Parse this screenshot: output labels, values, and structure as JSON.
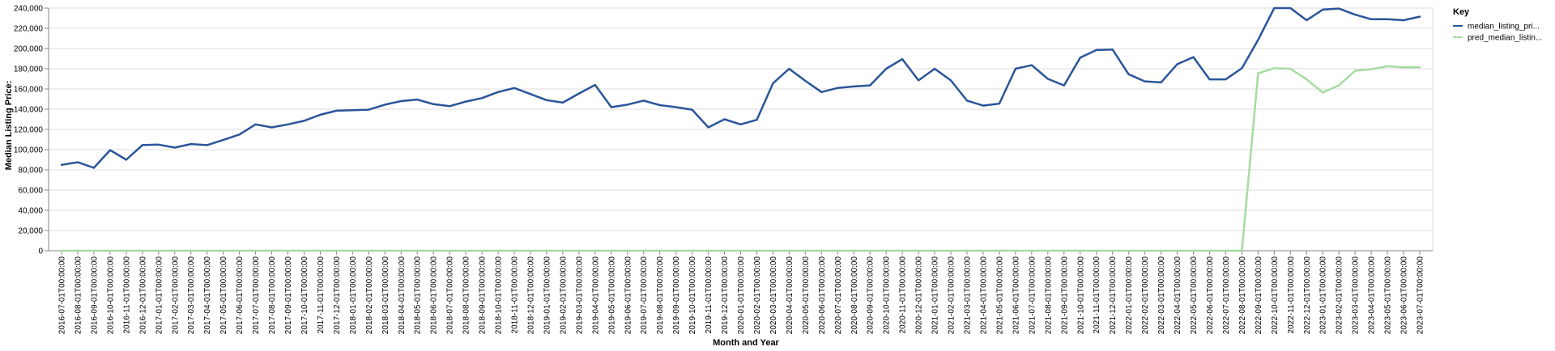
{
  "chart_data": {
    "type": "line",
    "xlabel": "Month and Year",
    "ylabel": "Median Listing Price:",
    "ylim": [
      0,
      240000
    ],
    "y_ticks": [
      "0",
      "20,000",
      "40,000",
      "60,000",
      "80,000",
      "100,000",
      "120,000",
      "140,000",
      "160,000",
      "180,000",
      "200,000",
      "220,000",
      "240,000"
    ],
    "grid": true,
    "legend": {
      "title": "Key",
      "position": "top-right",
      "entries": [
        {
          "label": "median_listing_pri...",
          "color": "#2a5599"
        },
        {
          "label": "pred_median_listin...",
          "color": "#a6dba0"
        }
      ]
    },
    "x": [
      "2016-07-01T00:00:00",
      "2016-08-01T00:00:00",
      "2016-09-01T00:00:00",
      "2016-10-01T00:00:00",
      "2016-11-01T00:00:00",
      "2016-12-01T00:00:00",
      "2017-01-01T00:00:00",
      "2017-02-01T00:00:00",
      "2017-03-01T00:00:00",
      "2017-04-01T00:00:00",
      "2017-05-01T00:00:00",
      "2017-06-01T00:00:00",
      "2017-07-01T00:00:00",
      "2017-08-01T00:00:00",
      "2017-09-01T00:00:00",
      "2017-10-01T00:00:00",
      "2017-11-01T00:00:00",
      "2017-12-01T00:00:00",
      "2018-01-01T00:00:00",
      "2018-02-01T00:00:00",
      "2018-03-01T00:00:00",
      "2018-04-01T00:00:00",
      "2018-05-01T00:00:00",
      "2018-06-01T00:00:00",
      "2018-07-01T00:00:00",
      "2018-08-01T00:00:00",
      "2018-09-01T00:00:00",
      "2018-10-01T00:00:00",
      "2018-11-01T00:00:00",
      "2018-12-01T00:00:00",
      "2019-01-01T00:00:00",
      "2019-02-01T00:00:00",
      "2019-03-01T00:00:00",
      "2019-04-01T00:00:00",
      "2019-05-01T00:00:00",
      "2019-06-01T00:00:00",
      "2019-07-01T00:00:00",
      "2019-08-01T00:00:00",
      "2019-09-01T00:00:00",
      "2019-10-01T00:00:00",
      "2019-11-01T00:00:00",
      "2019-12-01T00:00:00",
      "2020-01-01T00:00:00",
      "2020-02-01T00:00:00",
      "2020-03-01T00:00:00",
      "2020-04-01T00:00:00",
      "2020-05-01T00:00:00",
      "2020-06-01T00:00:00",
      "2020-07-01T00:00:00",
      "2020-08-01T00:00:00",
      "2020-09-01T00:00:00",
      "2020-10-01T00:00:00",
      "2020-11-01T00:00:00",
      "2020-12-01T00:00:00",
      "2021-01-01T00:00:00",
      "2021-02-01T00:00:00",
      "2021-03-01T00:00:00",
      "2021-04-01T00:00:00",
      "2021-05-01T00:00:00",
      "2021-06-01T00:00:00",
      "2021-07-01T00:00:00",
      "2021-08-01T00:00:00",
      "2021-09-01T00:00:00",
      "2021-10-01T00:00:00",
      "2021-11-01T00:00:00",
      "2021-12-01T00:00:00",
      "2022-01-01T00:00:00",
      "2022-02-01T00:00:00",
      "2022-03-01T00:00:00",
      "2022-04-01T00:00:00",
      "2022-05-01T00:00:00",
      "2022-06-01T00:00:00",
      "2022-07-01T00:00:00",
      "2022-08-01T00:00:00",
      "2022-09-01T00:00:00",
      "2022-10-01T00:00:00",
      "2022-11-01T00:00:00",
      "2022-12-01T00:00:00",
      "2023-01-01T00:00:00",
      "2023-02-01T00:00:00",
      "2023-03-01T00:00:00",
      "2023-04-01T00:00:00",
      "2023-05-01T00:00:00",
      "2023-06-01T00:00:00",
      "2023-07-01T00:00:00"
    ],
    "series": [
      {
        "name": "median_listing_pri...",
        "color": "#2a5599",
        "values": [
          85000,
          87500,
          82000,
          99500,
          90000,
          104500,
          105000,
          102000,
          105500,
          104500,
          109500,
          115000,
          125000,
          122000,
          125000,
          128500,
          134500,
          138500,
          139000,
          139500,
          144500,
          148000,
          149500,
          145000,
          143000,
          147500,
          151000,
          157000,
          161000,
          155000,
          149000,
          146500,
          155500,
          164000,
          142000,
          144500,
          148500,
          144000,
          142000,
          139500,
          122000,
          130000,
          125000,
          129500,
          165500,
          180000,
          168000,
          157000,
          161000,
          162500,
          163500,
          180000,
          189500,
          168500,
          180000,
          168500,
          148500,
          143500,
          145500,
          180000,
          183500,
          170000,
          163500,
          191000,
          198500,
          199000,
          174500,
          167500,
          166500,
          184500,
          191500,
          169500,
          169500,
          180500,
          208500,
          240000,
          240000,
          228000,
          238500,
          239500,
          233500,
          229000,
          229000,
          228000,
          231500
        ]
      },
      {
        "name": "pred_median_listin...",
        "color": "#a6dba0",
        "values": [
          0,
          0,
          0,
          0,
          0,
          0,
          0,
          0,
          0,
          0,
          0,
          0,
          0,
          0,
          0,
          0,
          0,
          0,
          0,
          0,
          0,
          0,
          0,
          0,
          0,
          0,
          0,
          0,
          0,
          0,
          0,
          0,
          0,
          0,
          0,
          0,
          0,
          0,
          0,
          0,
          0,
          0,
          0,
          0,
          0,
          0,
          0,
          0,
          0,
          0,
          0,
          0,
          0,
          0,
          0,
          0,
          0,
          0,
          0,
          0,
          0,
          0,
          0,
          0,
          0,
          0,
          0,
          0,
          0,
          0,
          0,
          0,
          0,
          0,
          175500,
          180500,
          180000,
          169500,
          156500,
          163500,
          178000,
          179500,
          182500,
          181500,
          181500
        ]
      }
    ]
  }
}
